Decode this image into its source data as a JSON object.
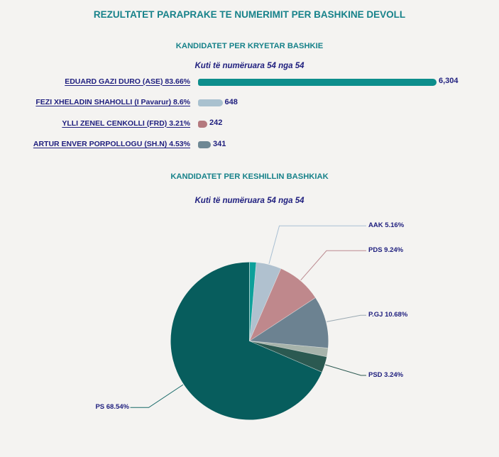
{
  "page": {
    "title": "REZULTATET PARAPRAKE TE NUMERIMIT PER BASHKINE DEVOLL",
    "background_color": "#f4f3f1",
    "heading_color": "#17828a",
    "text_color": "#1e1e7e"
  },
  "mayor_section": {
    "title": "KANDIDATET PER KRYETAR BASHKIE",
    "boxes_counted_note": "Kuti të numëruara 54 nga 54"
  },
  "council_section": {
    "title": "KANDIDATET PER KESHILLIN BASHKIAK",
    "boxes_counted_note": "Kuti të numëruara 54 nga 54"
  },
  "chart_data": [
    {
      "type": "bar",
      "title": "KANDIDATET PER KRYETAR BASHKIE",
      "orientation": "horizontal",
      "categories": [
        "EDUARD GAZI DURO (ASE) 83.66%",
        "FEZI XHELADIN SHAHOLLI (I Pavarur) 8.6%",
        "YLLI ZENEL CENKOLLI (FRD) 3.21%",
        "ARTUR ENVER PORPOLLOGU (SH.N) 4.53%"
      ],
      "values": [
        6304,
        648,
        242,
        341
      ],
      "value_labels": [
        "6,304",
        "648",
        "242",
        "341"
      ],
      "percentages": [
        83.66,
        8.6,
        3.21,
        4.53
      ],
      "bar_colors": [
        "#0d8e8c",
        "#a9c1cf",
        "#b4797e",
        "#6f8894"
      ]
    },
    {
      "type": "pie",
      "title": "KANDIDATET PER KESHILLIN BASHKIAK",
      "start_angle_deg": 0,
      "clockwise": true,
      "slices": [
        {
          "label": "",
          "pct": 1.36,
          "color": "#0da09a"
        },
        {
          "label": "AAK 5.16%",
          "pct": 5.16,
          "color": "#b0c1cf",
          "line_color": "#a8bfd3"
        },
        {
          "label": "PDS 9.24%",
          "pct": 9.24,
          "color": "#bf888c",
          "line_color": "#bb8a90"
        },
        {
          "label": "P.GJ 10.68%",
          "pct": 10.68,
          "color": "#6c8291",
          "line_color": "#9aa9b2"
        },
        {
          "label": "",
          "pct": 1.78,
          "color": "#a7b3ab"
        },
        {
          "label": "PSD 3.24%",
          "pct": 3.24,
          "color": "#2b5951",
          "line_color": "#2b5951"
        },
        {
          "label": "PS 68.54%",
          "pct": 68.54,
          "color": "#075d5d",
          "line_color": "#166968"
        }
      ]
    }
  ]
}
